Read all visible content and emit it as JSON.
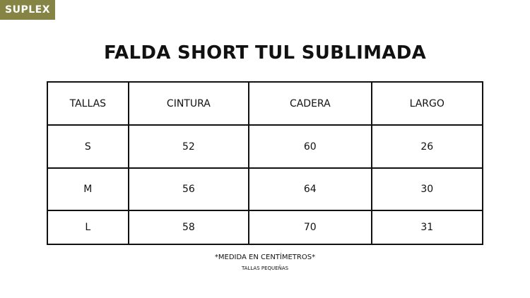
{
  "badge": "SUPLEX",
  "title": "FALDA SHORT TUL SUBLIMADA",
  "table": {
    "headers": [
      "TALLAS",
      "CINTURA",
      "CADERA",
      "LARGO"
    ],
    "rows": [
      [
        "S",
        "52",
        "60",
        "26"
      ],
      [
        "M",
        "56",
        "64",
        "30"
      ],
      [
        "L",
        "58",
        "70",
        "31"
      ]
    ]
  },
  "notes": {
    "measure": "*MEDIDA EN CENTÍMETROS*",
    "sizes": "TALLAS PEQUEÑAS"
  },
  "colors": {
    "badge": "#858445"
  }
}
